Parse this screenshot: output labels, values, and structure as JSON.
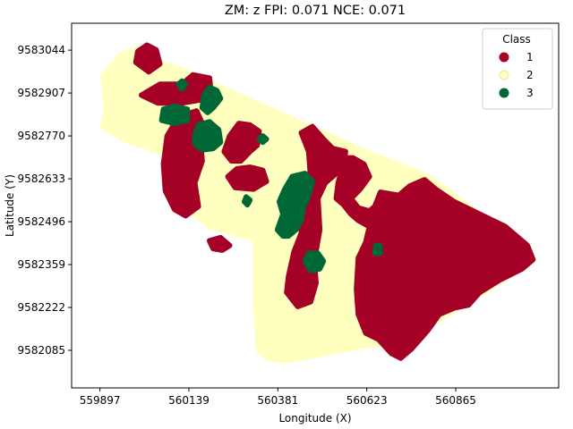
{
  "chart_data": {
    "type": "scatter",
    "title": "ZM: z   FPI: 0.071   NCE: 0.071",
    "xlabel": "Longitude (X)",
    "ylabel": "Latitude  (Y)",
    "xlim": [
      559820,
      561145
    ],
    "ylim": [
      9581965,
      9583130
    ],
    "xticks": [
      "559897",
      "560139",
      "560381",
      "560623",
      "560865"
    ],
    "yticks": [
      "9583044",
      "9582907",
      "9582770",
      "9582633",
      "9582496",
      "9582359",
      "9582222",
      "9582085"
    ],
    "legend": {
      "title": "Class",
      "placement": "top-right",
      "entries": [
        {
          "label": "1",
          "color": "#a50026"
        },
        {
          "label": "2",
          "color": "#ffffbf"
        },
        {
          "label": "3",
          "color": "#006837"
        }
      ]
    },
    "series": [
      {
        "name": "2",
        "color": "#ffffbf",
        "regions": [
          [
            [
              559905,
              9582960
            ],
            [
              559955,
              9583030
            ],
            [
              560000,
              9583050
            ],
            [
              560040,
              9583010
            ],
            [
              560120,
              9582980
            ],
            [
              560600,
              9582730
            ],
            [
              560790,
              9582640
            ],
            [
              561070,
              9582400
            ],
            [
              561055,
              9582355
            ],
            [
              560720,
              9582110
            ],
            [
              560620,
              9582100
            ],
            [
              560400,
              9582050
            ],
            [
              560355,
              9582060
            ],
            [
              560330,
              9582080
            ],
            [
              560320,
              9582230
            ],
            [
              560320,
              9582440
            ],
            [
              560195,
              9582480
            ],
            [
              560110,
              9582560
            ],
            [
              560080,
              9582710
            ],
            [
              559960,
              9582760
            ],
            [
              559905,
              9582800
            ],
            [
              559915,
              9582860
            ]
          ]
        ]
      },
      {
        "name": "1",
        "color": "#a50026",
        "regions": [
          [
            [
              560000,
              9583040
            ],
            [
              559995,
              9583005
            ],
            [
              560030,
              9582975
            ],
            [
              560060,
              9583000
            ],
            [
              560050,
              9583045
            ],
            [
              560025,
              9583060
            ]
          ],
          [
            [
              560010,
              9582900
            ],
            [
              560060,
              9582935
            ],
            [
              560120,
              9582935
            ],
            [
              560150,
              9582965
            ],
            [
              560195,
              9582955
            ],
            [
              560200,
              9582900
            ],
            [
              560170,
              9582885
            ],
            [
              560120,
              9582875
            ],
            [
              560055,
              9582875
            ]
          ],
          [
            [
              560080,
              9582770
            ],
            [
              560110,
              9582830
            ],
            [
              560160,
              9582850
            ],
            [
              560175,
              9582810
            ],
            [
              560170,
              9582760
            ],
            [
              560175,
              9582690
            ],
            [
              560155,
              9582620
            ],
            [
              560165,
              9582545
            ],
            [
              560130,
              9582515
            ],
            [
              560100,
              9582535
            ],
            [
              560075,
              9582595
            ],
            [
              560070,
              9582680
            ]
          ],
          [
            [
              560235,
              9582720
            ],
            [
              560250,
              9582770
            ],
            [
              560275,
              9582810
            ],
            [
              560305,
              9582805
            ],
            [
              560330,
              9582785
            ],
            [
              560325,
              9582740
            ],
            [
              560305,
              9582720
            ],
            [
              560280,
              9582690
            ],
            [
              560255,
              9582690
            ]
          ],
          [
            [
              560245,
              9582640
            ],
            [
              560265,
              9582605
            ],
            [
              560315,
              9582600
            ],
            [
              560350,
              9582625
            ],
            [
              560340,
              9582660
            ],
            [
              560305,
              9582670
            ],
            [
              560270,
              9582665
            ]
          ],
          [
            [
              560195,
              9582435
            ],
            [
              560225,
              9582445
            ],
            [
              560250,
              9582420
            ],
            [
              560230,
              9582405
            ],
            [
              560205,
              9582410
            ]
          ],
          [
            [
              560445,
              9582780
            ],
            [
              560465,
              9582720
            ],
            [
              560470,
              9582640
            ],
            [
              560460,
              9582600
            ],
            [
              560440,
              9582540
            ],
            [
              560445,
              9582460
            ],
            [
              560425,
              9582400
            ],
            [
              560410,
              9582320
            ],
            [
              560405,
              9582270
            ],
            [
              560435,
              9582225
            ],
            [
              560470,
              9582240
            ],
            [
              560485,
              9582300
            ],
            [
              560480,
              9582370
            ],
            [
              560495,
              9582470
            ],
            [
              560490,
              9582570
            ],
            [
              560510,
              9582620
            ],
            [
              560540,
              9582650
            ],
            [
              560560,
              9582680
            ],
            [
              560565,
              9582720
            ],
            [
              560530,
              9582730
            ],
            [
              560505,
              9582760
            ],
            [
              560475,
              9582800
            ]
          ],
          [
            [
              560560,
              9582700
            ],
            [
              560585,
              9582700
            ],
            [
              560615,
              9582680
            ],
            [
              560630,
              9582640
            ],
            [
              560605,
              9582600
            ],
            [
              560580,
              9582570
            ],
            [
              560560,
              9582550
            ],
            [
              560540,
              9582570
            ],
            [
              560545,
              9582620
            ],
            [
              560555,
              9582660
            ]
          ],
          [
            [
              560560,
              9582550
            ],
            [
              560580,
              9582570
            ],
            [
              560600,
              9582540
            ],
            [
              560630,
              9582530
            ],
            [
              560645,
              9582545
            ],
            [
              560660,
              9582590
            ],
            [
              560710,
              9582580
            ],
            [
              560740,
              9582610
            ],
            [
              560780,
              9582630
            ],
            [
              560810,
              9582600
            ],
            [
              560860,
              9582560
            ],
            [
              560930,
              9582520
            ],
            [
              561000,
              9582480
            ],
            [
              561060,
              9582420
            ],
            [
              561075,
              9582375
            ],
            [
              561045,
              9582345
            ],
            [
              560985,
              9582310
            ],
            [
              560930,
              9582270
            ],
            [
              560900,
              9582230
            ],
            [
              560860,
              9582220
            ],
            [
              560820,
              9582200
            ],
            [
              560790,
              9582150
            ],
            [
              560745,
              9582090
            ],
            [
              560715,
              9582060
            ],
            [
              560690,
              9582075
            ],
            [
              560655,
              9582120
            ],
            [
              560620,
              9582140
            ],
            [
              560600,
              9582200
            ],
            [
              560595,
              9582280
            ],
            [
              560600,
              9582380
            ],
            [
              560620,
              9582430
            ],
            [
              560630,
              9582480
            ],
            [
              560600,
              9582500
            ],
            [
              560580,
              9582520
            ]
          ]
        ]
      },
      {
        "name": "3",
        "color": "#006837",
        "regions": [
          [
            [
              560070,
              9582855
            ],
            [
              560065,
              9582820
            ],
            [
              560100,
              9582810
            ],
            [
              560135,
              9582820
            ],
            [
              560135,
              9582855
            ],
            [
              560100,
              9582865
            ]
          ],
          [
            [
              560155,
              9582770
            ],
            [
              560155,
              9582745
            ],
            [
              560175,
              9582725
            ],
            [
              560205,
              9582730
            ],
            [
              560225,
              9582750
            ],
            [
              560220,
              9582790
            ],
            [
              560195,
              9582815
            ],
            [
              560165,
              9582805
            ]
          ],
          [
            [
              560175,
              9582860
            ],
            [
              560180,
              9582900
            ],
            [
              560195,
              9582925
            ],
            [
              560215,
              9582915
            ],
            [
              560225,
              9582890
            ],
            [
              560205,
              9582860
            ],
            [
              560190,
              9582845
            ]
          ],
          [
            [
              560110,
              9582935
            ],
            [
              560120,
              9582920
            ],
            [
              560130,
              9582935
            ],
            [
              560120,
              9582945
            ]
          ],
          [
            [
              560380,
              9582470
            ],
            [
              560395,
              9582520
            ],
            [
              560385,
              9582560
            ],
            [
              560400,
              9582600
            ],
            [
              560420,
              9582640
            ],
            [
              560455,
              9582650
            ],
            [
              560475,
              9582625
            ],
            [
              560465,
              9582580
            ],
            [
              560450,
              9582540
            ],
            [
              560445,
              9582500
            ],
            [
              560430,
              9582470
            ],
            [
              560410,
              9582450
            ],
            [
              560395,
              9582450
            ]
          ],
          [
            [
              560455,
              9582370
            ],
            [
              560465,
              9582395
            ],
            [
              560490,
              9582395
            ],
            [
              560505,
              9582370
            ],
            [
              560495,
              9582345
            ],
            [
              560470,
              9582340
            ]
          ],
          [
            [
              560290,
              9582560
            ],
            [
              560295,
              9582575
            ],
            [
              560305,
              9582565
            ],
            [
              560298,
              9582550
            ]
          ],
          [
            [
              560330,
              9582760
            ],
            [
              560340,
              9582770
            ],
            [
              560350,
              9582760
            ],
            [
              560340,
              9582750
            ]
          ],
          [
            [
              560645,
              9582395
            ],
            [
              560648,
              9582420
            ],
            [
              560658,
              9582420
            ],
            [
              560660,
              9582395
            ]
          ]
        ]
      }
    ]
  }
}
